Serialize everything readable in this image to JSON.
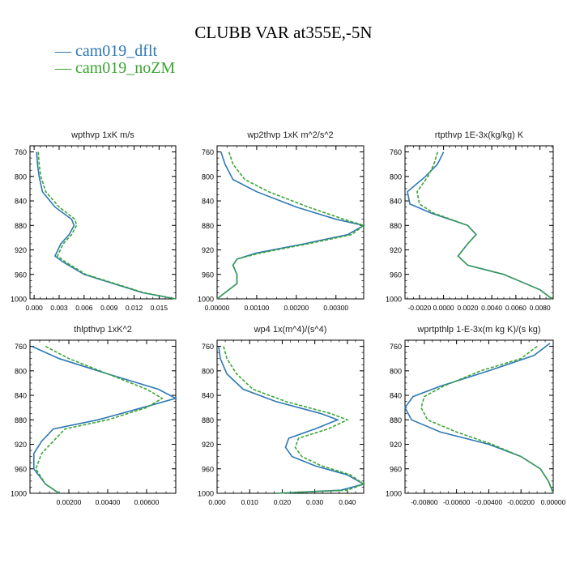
{
  "title": "CLUBB VAR at355E,-5N",
  "legend": [
    {
      "label": "cam019_dflt",
      "color": "#2d78b4",
      "dash": ""
    },
    {
      "label": "cam019_noZM",
      "color": "#3ba532",
      "dash": "4,2"
    }
  ],
  "chart_data": [
    {
      "type": "line",
      "title": "wpthvp  1xK m/s",
      "xlim": [
        -0.0005,
        0.017
      ],
      "ylim": [
        750,
        1000
      ],
      "xticks": [
        0.0,
        0.003,
        0.006,
        0.009,
        0.012,
        0.015
      ],
      "xtick_labels": [
        "0.000",
        "0.003",
        "0.006",
        "0.009",
        "0.012",
        "0.015"
      ],
      "yticks": [
        760,
        800,
        840,
        880,
        920,
        960,
        1000
      ],
      "ytick_labels": [
        "760",
        "800",
        "840",
        "880",
        "920",
        "960",
        "1000"
      ],
      "series": [
        {
          "name": "cam019_dflt",
          "x": [
            0.0003,
            0.0004,
            0.0006,
            0.001,
            0.0025,
            0.0045,
            0.0048,
            0.0042,
            0.0032,
            0.0025,
            0.0035,
            0.006,
            0.0095,
            0.013,
            0.017
          ],
          "y": [
            760,
            780,
            800,
            825,
            850,
            870,
            880,
            895,
            910,
            930,
            940,
            960,
            975,
            990,
            1000
          ]
        },
        {
          "name": "cam019_noZM",
          "x": [
            0.0005,
            0.0006,
            0.0008,
            0.0014,
            0.003,
            0.0049,
            0.0051,
            0.0045,
            0.0035,
            0.0028,
            0.0038,
            0.0062,
            0.0097,
            0.0132,
            0.017
          ],
          "y": [
            760,
            780,
            800,
            825,
            850,
            870,
            880,
            895,
            910,
            930,
            940,
            960,
            975,
            990,
            1000
          ]
        }
      ]
    },
    {
      "type": "line",
      "title": "wp2thvp  1xK m^2/s^2",
      "xlim": [
        0.0,
        0.0037
      ],
      "ylim": [
        750,
        1000
      ],
      "xticks": [
        0.0,
        0.001,
        0.002,
        0.003
      ],
      "xtick_labels": [
        "0.00000",
        "0.00100",
        "0.00200",
        "0.00300"
      ],
      "yticks": [
        760,
        800,
        840,
        880,
        920,
        960,
        1000
      ],
      "ytick_labels": [
        "760",
        "800",
        "840",
        "880",
        "920",
        "960",
        "1000"
      ],
      "series": [
        {
          "name": "cam019_dflt",
          "x": [
            0.0001,
            0.0002,
            0.0004,
            0.001,
            0.002,
            0.003,
            0.0037,
            0.0033,
            0.0022,
            0.001,
            0.0005,
            0.0004,
            0.0005,
            0.0005,
            0.0002,
            0.0
          ],
          "y": [
            760,
            780,
            805,
            825,
            850,
            870,
            880,
            895,
            910,
            925,
            935,
            945,
            960,
            975,
            990,
            1000
          ]
        },
        {
          "name": "cam019_noZM",
          "x": [
            0.0003,
            0.0004,
            0.0007,
            0.0013,
            0.0023,
            0.0032,
            0.0037,
            0.0034,
            0.0023,
            0.0011,
            0.0005,
            0.0004,
            0.0005,
            0.0005,
            0.0002,
            0.0
          ],
          "y": [
            760,
            780,
            805,
            825,
            850,
            870,
            880,
            895,
            910,
            925,
            935,
            945,
            960,
            975,
            990,
            1000
          ]
        }
      ]
    },
    {
      "type": "line",
      "title": "rtpthvp  1E-3x(kg/kg) K",
      "xlim": [
        -0.0032,
        0.0091
      ],
      "ylim": [
        750,
        1000
      ],
      "xticks": [
        -0.002,
        0.0,
        0.002,
        0.004,
        0.006,
        0.008
      ],
      "xtick_labels": [
        "-0.0020",
        "0.0000",
        "0.0020",
        "0.0040",
        "0.0060",
        "0.0080"
      ],
      "yticks": [
        760,
        800,
        840,
        880,
        920,
        960,
        1000
      ],
      "ytick_labels": [
        "760",
        "800",
        "840",
        "880",
        "920",
        "960",
        "1000"
      ],
      "series": [
        {
          "name": "cam019_dflt",
          "x": [
            0.0,
            -0.0005,
            -0.0015,
            -0.003,
            -0.0028,
            -0.001,
            0.002,
            0.0027,
            0.002,
            0.0012,
            0.002,
            0.005,
            0.008,
            0.009
          ],
          "y": [
            760,
            780,
            800,
            825,
            845,
            860,
            880,
            895,
            910,
            930,
            945,
            960,
            985,
            1000
          ]
        },
        {
          "name": "cam019_noZM",
          "x": [
            -0.0005,
            -0.0008,
            -0.0013,
            -0.0022,
            -0.002,
            -0.0008,
            0.002,
            0.0027,
            0.002,
            0.0012,
            0.002,
            0.005,
            0.008,
            0.009
          ],
          "y": [
            760,
            780,
            800,
            825,
            845,
            860,
            880,
            895,
            910,
            930,
            945,
            960,
            985,
            1000
          ]
        }
      ]
    },
    {
      "type": "line",
      "title": "thlpthvp  1xK^2",
      "xlim": [
        0.0,
        0.0075
      ],
      "ylim": [
        750,
        1000
      ],
      "xticks": [
        0.002,
        0.004,
        0.006
      ],
      "xtick_labels": [
        "0.00200",
        "0.00400",
        "0.00600"
      ],
      "yticks": [
        760,
        800,
        840,
        880,
        920,
        960,
        1000
      ],
      "ytick_labels": [
        "760",
        "800",
        "840",
        "880",
        "920",
        "960",
        "1000"
      ],
      "series": [
        {
          "name": "cam019_dflt",
          "x": [
            0.0001,
            0.0015,
            0.004,
            0.0066,
            0.0075,
            0.0058,
            0.0035,
            0.0012,
            0.0006,
            0.0002,
            0.0002,
            0.0008,
            0.0015
          ],
          "y": [
            760,
            780,
            805,
            830,
            845,
            860,
            880,
            895,
            915,
            935,
            960,
            985,
            1000
          ]
        },
        {
          "name": "cam019_noZM",
          "x": [
            0.0008,
            0.002,
            0.004,
            0.006,
            0.0068,
            0.006,
            0.004,
            0.0018,
            0.0012,
            0.0006,
            0.0003,
            0.0008,
            0.0015
          ],
          "y": [
            760,
            780,
            805,
            830,
            845,
            860,
            880,
            895,
            915,
            935,
            960,
            985,
            1000
          ]
        }
      ]
    },
    {
      "type": "line",
      "title": "wp4  1x(m^4)/(s^4)",
      "xlim": [
        0.0,
        0.045
      ],
      "ylim": [
        750,
        1000
      ],
      "xticks": [
        0.0,
        0.01,
        0.02,
        0.03,
        0.04
      ],
      "xtick_labels": [
        "0.000",
        "0.010",
        "0.020",
        "0.030",
        "0.040"
      ],
      "yticks": [
        760,
        800,
        840,
        880,
        920,
        960,
        1000
      ],
      "ytick_labels": [
        "760",
        "800",
        "840",
        "880",
        "920",
        "960",
        "1000"
      ],
      "series": [
        {
          "name": "cam019_dflt",
          "x": [
            0.0005,
            0.001,
            0.003,
            0.008,
            0.018,
            0.032,
            0.037,
            0.03,
            0.022,
            0.021,
            0.023,
            0.03,
            0.04,
            0.045,
            0.038,
            0.018
          ],
          "y": [
            760,
            780,
            805,
            830,
            850,
            870,
            880,
            895,
            910,
            925,
            940,
            955,
            970,
            985,
            995,
            1000
          ]
        },
        {
          "name": "cam019_noZM",
          "x": [
            0.002,
            0.003,
            0.006,
            0.011,
            0.021,
            0.035,
            0.04,
            0.034,
            0.025,
            0.024,
            0.026,
            0.032,
            0.041,
            0.045,
            0.04,
            0.018
          ],
          "y": [
            760,
            780,
            805,
            830,
            850,
            870,
            880,
            895,
            910,
            925,
            940,
            955,
            970,
            985,
            995,
            1000
          ]
        }
      ]
    },
    {
      "type": "line",
      "title": "wprtpthlp  1-E-3x(m kg K)/(s kg)",
      "xlim": [
        -0.0092,
        0.0
      ],
      "ylim": [
        750,
        1000
      ],
      "xticks": [
        -0.008,
        -0.006,
        -0.004,
        -0.002,
        0.0
      ],
      "xtick_labels": [
        "-0.00800",
        "-0.00600",
        "-0.00400",
        "-0.00200",
        "0.00000"
      ],
      "yticks": [
        760,
        800,
        840,
        880,
        920,
        960,
        1000
      ],
      "ytick_labels": [
        "760",
        "800",
        "840",
        "880",
        "920",
        "960",
        "1000"
      ],
      "series": [
        {
          "name": "cam019_dflt",
          "x": [
            -0.0002,
            -0.0012,
            -0.004,
            -0.007,
            -0.0087,
            -0.0092,
            -0.0088,
            -0.007,
            -0.004,
            -0.002,
            -0.0008,
            -0.0003,
            0.0
          ],
          "y": [
            755,
            775,
            800,
            825,
            842,
            860,
            880,
            900,
            920,
            940,
            960,
            980,
            1000
          ]
        },
        {
          "name": "cam019_noZM",
          "x": [
            -0.001,
            -0.002,
            -0.0045,
            -0.0068,
            -0.008,
            -0.0082,
            -0.0078,
            -0.006,
            -0.0038,
            -0.002,
            -0.0008,
            -0.0003,
            0.0
          ],
          "y": [
            760,
            780,
            800,
            825,
            842,
            860,
            880,
            900,
            920,
            940,
            960,
            980,
            1000
          ]
        }
      ]
    }
  ]
}
